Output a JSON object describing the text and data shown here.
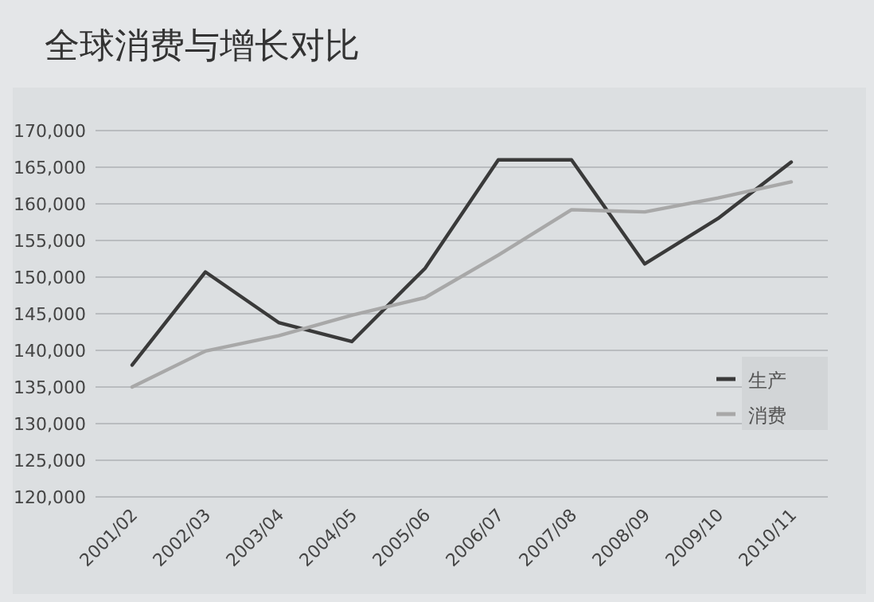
{
  "chart_data": {
    "type": "line",
    "title": "全球消费与增长对比",
    "categories": [
      "2001/02",
      "2002/03",
      "2003/04",
      "2004/05",
      "2005/06",
      "2006/07",
      "2007/08",
      "2008/09",
      "2009/10",
      "2010/11"
    ],
    "series": [
      {
        "name": "生产",
        "color": "#3a3a3a",
        "values": [
          138000,
          150700,
          143800,
          141200,
          151200,
          166000,
          166000,
          151800,
          158000,
          165700
        ]
      },
      {
        "name": "消费",
        "color": "#a8a8a8",
        "values": [
          135000,
          139900,
          142000,
          144800,
          147200,
          153000,
          159200,
          158900,
          160800,
          163000
        ]
      }
    ],
    "ylim": [
      120000,
      170000
    ],
    "yticks": [
      {
        "value": 120000,
        "label": "120,000"
      },
      {
        "value": 125000,
        "label": "125,000"
      },
      {
        "value": 130000,
        "label": "130,000"
      },
      {
        "value": 135000,
        "label": "135,000"
      },
      {
        "value": 140000,
        "label": "140,000"
      },
      {
        "value": 145000,
        "label": "145,000"
      },
      {
        "value": 150000,
        "label": "150,000"
      },
      {
        "value": 155000,
        "label": "155,000"
      },
      {
        "value": 160000,
        "label": "160,000"
      },
      {
        "value": 165000,
        "label": "165,000"
      },
      {
        "value": 170000,
        "label": "170,000"
      }
    ],
    "grid": "y",
    "legend": "right",
    "marker": "none",
    "line_style": "solid"
  }
}
